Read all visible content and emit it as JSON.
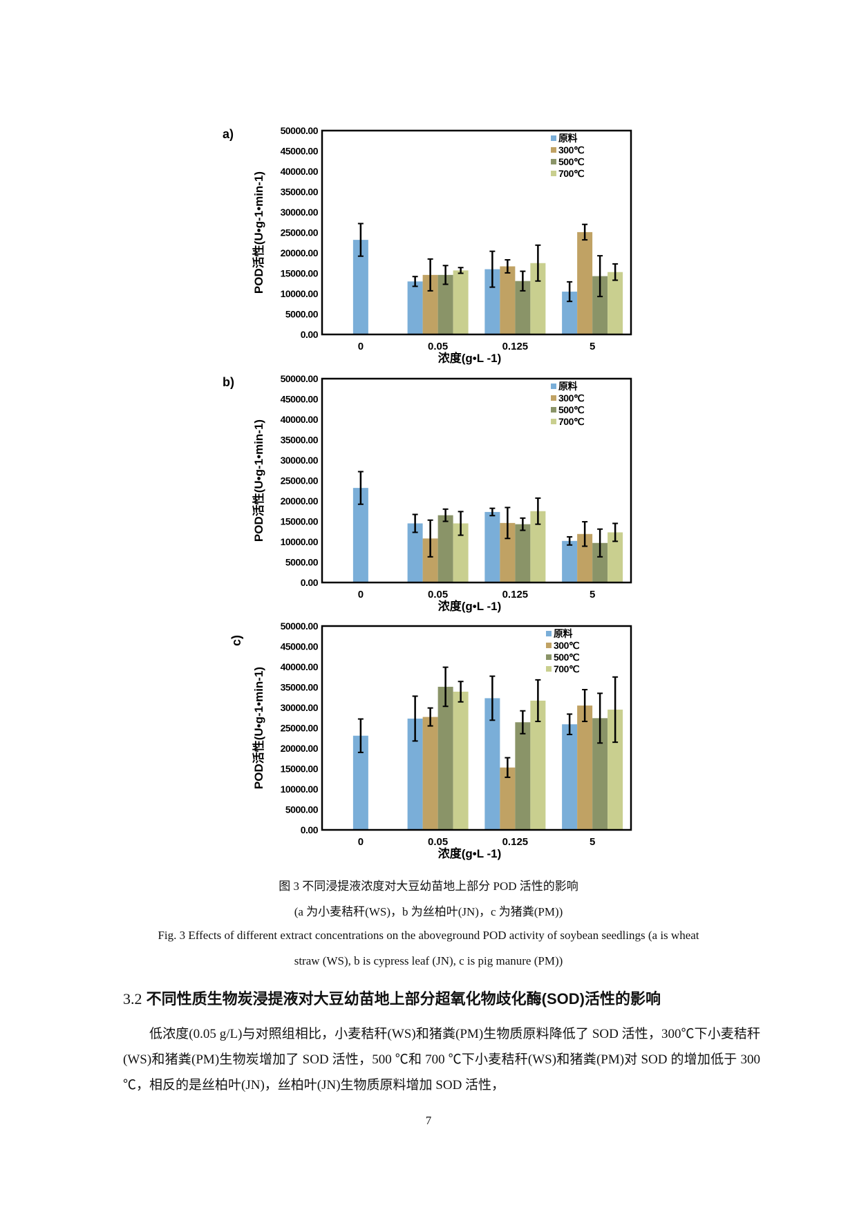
{
  "chart_data": [
    {
      "type": "bar",
      "panel": "a)",
      "ylabel": "POD活性(U•g-1•min-1)",
      "xlabel": "浓度(g•L -1)",
      "ylim": [
        0,
        50000
      ],
      "yticks": [
        "0.00",
        "5000.00",
        "10000.00",
        "15000.00",
        "20000.00",
        "25000.00",
        "30000.00",
        "35000.00",
        "40000.00",
        "45000.00",
        "50000.00"
      ],
      "categories": [
        "0",
        "0.05",
        "0.125",
        "5"
      ],
      "series": [
        {
          "name": "原料",
          "color": "#7aaed8",
          "values": [
            23200,
            13000,
            16000,
            10500
          ],
          "errors": [
            4000,
            1200,
            4400,
            2400
          ]
        },
        {
          "name": "300℃",
          "color": "#c0a264",
          "values": [
            null,
            14600,
            16700,
            25100
          ],
          "errors": [
            null,
            3900,
            1600,
            1900
          ]
        },
        {
          "name": "500℃",
          "color": "#8a9468",
          "values": [
            null,
            14600,
            13100,
            14300
          ],
          "errors": [
            null,
            2300,
            2400,
            5000
          ]
        },
        {
          "name": "700℃",
          "color": "#c9cf8f",
          "values": [
            null,
            15700,
            17500,
            15300
          ],
          "errors": [
            null,
            700,
            4400,
            2000
          ]
        }
      ],
      "legend": "top-right"
    },
    {
      "type": "bar",
      "panel": "b)",
      "ylabel": "POD活性(U•g-1•min-1)",
      "xlabel": "浓度(g•L -1)",
      "ylim": [
        0,
        50000
      ],
      "yticks": [
        "0.00",
        "5000.00",
        "10000.00",
        "15000.00",
        "20000.00",
        "25000.00",
        "30000.00",
        "35000.00",
        "40000.00",
        "45000.00",
        "50000.00"
      ],
      "categories": [
        "0",
        "0.05",
        "0.125",
        "5"
      ],
      "series": [
        {
          "name": "原料",
          "color": "#7aaed8",
          "values": [
            23200,
            14500,
            17300,
            10200
          ],
          "errors": [
            4000,
            2200,
            900,
            1000
          ]
        },
        {
          "name": "300℃",
          "color": "#c0a264",
          "values": [
            null,
            10800,
            14600,
            11900
          ],
          "errors": [
            null,
            4500,
            3800,
            3000
          ]
        },
        {
          "name": "500℃",
          "color": "#8a9468",
          "values": [
            null,
            16500,
            14300,
            9700
          ],
          "errors": [
            null,
            1500,
            1500,
            3400
          ]
        },
        {
          "name": "700℃",
          "color": "#c9cf8f",
          "values": [
            null,
            14500,
            17500,
            12300
          ],
          "errors": [
            null,
            2900,
            3200,
            2200
          ]
        }
      ],
      "legend": "top-right"
    },
    {
      "type": "bar",
      "panel": "c)",
      "ylabel": "POD活性(U•g-1•min-1)",
      "xlabel": "浓度(g•L -1)",
      "ylim": [
        0,
        50000
      ],
      "yticks": [
        "0.00",
        "5000.00",
        "10000.00",
        "15000.00",
        "20000.00",
        "25000.00",
        "30000.00",
        "35000.00",
        "40000.00",
        "45000.00",
        "50000.00"
      ],
      "categories": [
        "0",
        "0.05",
        "0.125",
        "5"
      ],
      "series": [
        {
          "name": "原料",
          "color": "#7aaed8",
          "values": [
            23100,
            27300,
            32300,
            25900
          ],
          "errors": [
            4100,
            5500,
            5400,
            2500
          ]
        },
        {
          "name": "300℃",
          "color": "#c0a264",
          "values": [
            null,
            27700,
            15300,
            30500
          ],
          "errors": [
            null,
            2200,
            2400,
            3900
          ]
        },
        {
          "name": "500℃",
          "color": "#8a9468",
          "values": [
            null,
            35100,
            26400,
            27400
          ],
          "errors": [
            null,
            4800,
            2800,
            6100
          ]
        },
        {
          "name": "700℃",
          "color": "#c9cf8f",
          "values": [
            null,
            33900,
            31700,
            29500
          ],
          "errors": [
            null,
            2500,
            5100,
            8000
          ]
        }
      ],
      "legend": "top-right"
    }
  ],
  "caption": {
    "zh_line1": "图 3  不同浸提液浓度对大豆幼苗地上部分 POD 活性的影响",
    "zh_line2": "(a 为小麦秸秆(WS)，b 为丝柏叶(JN)，c 为猪粪(PM))",
    "en_line1": "Fig. 3 Effects of different extract concentrations on the aboveground POD activity of soybean seedlings (a is wheat",
    "en_line2": "straw (WS), b is cypress leaf (JN), c is pig manure (PM))"
  },
  "section": {
    "number": "3.2",
    "title": "不同性质生物炭浸提液对大豆幼苗地上部分超氧化物歧化酶(SOD)活性的影响"
  },
  "body": "低浓度(0.05 g/L)与对照组相比，小麦秸秆(WS)和猪粪(PM)生物质原料降低了 SOD 活性，300℃下小麦秸秆(WS)和猪粪(PM)生物炭增加了 SOD 活性，500 ℃和 700 ℃下小麦秸秆(WS)和猪粪(PM)对 SOD 的增加低于 300 ℃，相反的是丝柏叶(JN)，丝柏叶(JN)生物质原料增加 SOD 活性，",
  "page_number": "7"
}
